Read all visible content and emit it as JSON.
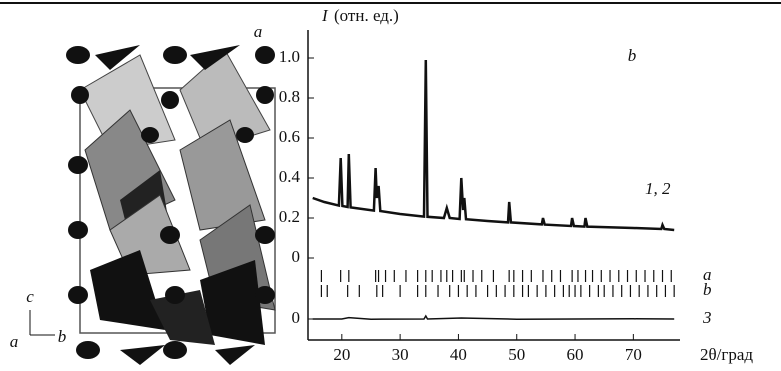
{
  "panel_a": {
    "label": "a",
    "axes": {
      "c": "c",
      "a": "a",
      "b": "b"
    }
  },
  "chart_data": {
    "type": "line",
    "panel_label": "b",
    "y_label_symbol": "I",
    "y_label_units": "(отн. ед.)",
    "x_label": "2θ/град",
    "xlim": [
      14.2,
      78
    ],
    "xticks": [
      20,
      30,
      40,
      50,
      60,
      70
    ],
    "ylim": [
      -0.41,
      1.14
    ],
    "yticks": [
      {
        "value": -0.305,
        "label": "0"
      },
      0,
      0.2,
      0.4,
      0.6,
      0.8,
      {
        "value": 1.0,
        "label": "1.0"
      }
    ],
    "series": [
      {
        "name": "1, 2",
        "color": "#111111",
        "x": [
          15,
          17,
          19.5,
          19.8,
          20.1,
          21.0,
          21.2,
          21.5,
          25.5,
          25.8,
          26.0,
          26.3,
          26.6,
          30,
          34.1,
          34.4,
          34.7,
          37.5,
          38,
          38.5,
          40.2,
          40.5,
          40.8,
          41,
          41.3,
          45,
          48.5,
          48.7,
          49,
          54.3,
          54.5,
          54.8,
          59.3,
          59.5,
          59.8,
          61.6,
          61.8,
          62.1,
          70,
          74.8,
          75,
          75.3,
          77
        ],
        "values": [
          0.3,
          0.28,
          0.262,
          0.5,
          0.26,
          0.255,
          0.52,
          0.253,
          0.237,
          0.45,
          0.3,
          0.36,
          0.235,
          0.22,
          0.207,
          0.99,
          0.206,
          0.2,
          0.25,
          0.2,
          0.195,
          0.4,
          0.24,
          0.3,
          0.194,
          0.185,
          0.178,
          0.28,
          0.178,
          0.168,
          0.2,
          0.167,
          0.16,
          0.2,
          0.16,
          0.157,
          0.2,
          0.157,
          0.15,
          0.145,
          0.165,
          0.145,
          0.14
        ]
      },
      {
        "name": "3",
        "color": "#111111",
        "x": [
          15,
          20,
          21.2,
          25,
          34.1,
          34.4,
          34.7,
          40.5,
          50,
          60,
          70,
          77
        ],
        "values": [
          -0.305,
          -0.305,
          -0.298,
          -0.306,
          -0.305,
          -0.29,
          -0.305,
          -0.3,
          -0.306,
          -0.305,
          -0.304,
          -0.305
        ]
      }
    ],
    "reflections": [
      {
        "name": "a",
        "level": -0.09,
        "x": [
          16.5,
          19.8,
          21.2,
          25.8,
          26.3,
          27.5,
          29,
          31,
          33,
          34.4,
          35.5,
          37,
          38,
          39,
          40.5,
          41,
          42.5,
          44,
          46,
          48.7,
          49.5,
          51,
          52.5,
          54.5,
          56,
          57.5,
          59.5,
          60.5,
          61.8,
          63,
          64.5,
          66,
          67.5,
          69,
          70.5,
          72,
          73.5,
          75,
          76.5
        ]
      },
      {
        "name": "b",
        "level": -0.165,
        "x": [
          16.5,
          17.5,
          21,
          23,
          26,
          27,
          30,
          33,
          34.4,
          36.5,
          38.5,
          40,
          41.5,
          43,
          45,
          46.5,
          48,
          49.5,
          51,
          52,
          53.5,
          55,
          56.5,
          58,
          59,
          60,
          61,
          62.5,
          64,
          65,
          66.5,
          68,
          69.5,
          71,
          72.5,
          74,
          75.5,
          77
        ]
      }
    ]
  }
}
